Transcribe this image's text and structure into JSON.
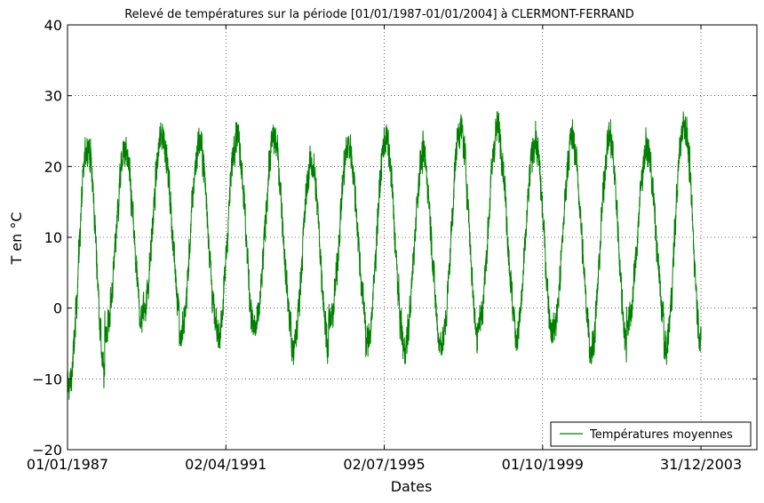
{
  "chart_data": {
    "type": "line",
    "title": "Relevé de températures sur la période [01/01/1987-01/01/2004] à CLERMONT-FERRAND",
    "xlabel": "Dates",
    "ylabel": "T en °C",
    "xlim": [
      "1987-01-01",
      "2005-07-01"
    ],
    "ylim": [
      -20,
      40
    ],
    "x_ticks": [
      "01/01/1987",
      "02/04/1991",
      "02/07/1995",
      "01/10/1999",
      "31/12/2003"
    ],
    "y_ticks": [
      -20,
      -10,
      0,
      10,
      20,
      30,
      40
    ],
    "y_tick_labels": [
      "−20",
      "−10",
      "0",
      "10",
      "20",
      "30",
      "40"
    ],
    "grid": true,
    "legend_position": "bottom-right",
    "series_color": "#008000",
    "series": [
      {
        "name": "Températures moyennes",
        "x_start": "1987-01-01",
        "x_end": "2004-01-01",
        "step": "1 day",
        "yearly_min": [
          -13,
          -5,
          -2,
          -6,
          -6,
          -5,
          -8,
          -4,
          -7,
          -8,
          -7,
          -4,
          -6,
          -5,
          -8,
          -4,
          -8
        ],
        "yearly_max": [
          27,
          26,
          28.5,
          27.5,
          28.8,
          28,
          24.5,
          27,
          28,
          25.5,
          29.5,
          29.5,
          27.5,
          28,
          28,
          26.5,
          30.2
        ]
      }
    ]
  }
}
